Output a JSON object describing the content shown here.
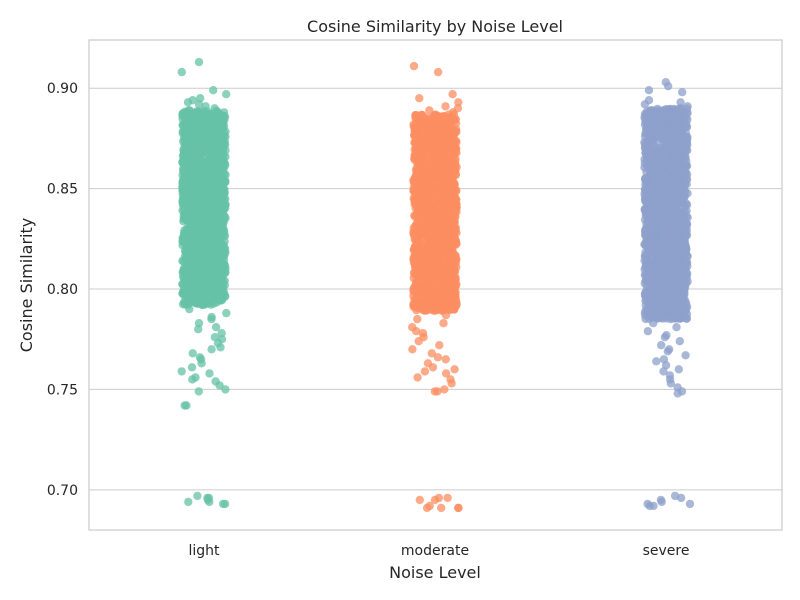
{
  "chart_data": {
    "type": "scatter",
    "subtype": "strip",
    "title": "Cosine Similarity by Noise Level",
    "xlabel": "Noise Level",
    "ylabel": "Cosine Similarity",
    "categories": [
      "light",
      "moderate",
      "severe"
    ],
    "ylim": [
      0.68,
      0.924
    ],
    "yticks": [
      0.7,
      0.75,
      0.8,
      0.85,
      0.9
    ],
    "ytick_labels": [
      "0.70",
      "0.75",
      "0.80",
      "0.85",
      "0.90"
    ],
    "grid": true,
    "legend": "none",
    "marker_alpha": 0.75,
    "series": [
      {
        "category": "light",
        "color": "#66c2a5",
        "dense_range": [
          0.792,
          0.889
        ],
        "points": [
          0.913,
          0.908,
          0.899,
          0.897,
          0.895,
          0.894,
          0.893,
          0.892,
          0.891,
          0.89,
          0.79,
          0.788,
          0.786,
          0.785,
          0.783,
          0.781,
          0.78,
          0.778,
          0.776,
          0.775,
          0.773,
          0.771,
          0.77,
          0.768,
          0.766,
          0.765,
          0.763,
          0.761,
          0.759,
          0.758,
          0.756,
          0.755,
          0.754,
          0.752,
          0.75,
          0.749,
          0.742,
          0.742,
          0.697,
          0.696,
          0.696,
          0.695,
          0.694,
          0.694,
          0.693,
          0.693
        ]
      },
      {
        "category": "moderate",
        "color": "#fc8d62",
        "dense_range": [
          0.789,
          0.887
        ],
        "points": [
          0.911,
          0.908,
          0.897,
          0.895,
          0.893,
          0.891,
          0.89,
          0.889,
          0.888,
          0.787,
          0.785,
          0.783,
          0.781,
          0.779,
          0.778,
          0.776,
          0.774,
          0.772,
          0.77,
          0.768,
          0.766,
          0.765,
          0.763,
          0.761,
          0.76,
          0.759,
          0.758,
          0.756,
          0.755,
          0.753,
          0.75,
          0.749,
          0.749,
          0.696,
          0.696,
          0.695,
          0.695,
          0.692,
          0.691,
          0.691,
          0.691,
          0.691
        ]
      },
      {
        "category": "severe",
        "color": "#8da0cb",
        "dense_range": [
          0.785,
          0.89
        ],
        "points": [
          0.903,
          0.901,
          0.899,
          0.898,
          0.894,
          0.893,
          0.892,
          0.891,
          0.783,
          0.781,
          0.779,
          0.777,
          0.776,
          0.774,
          0.772,
          0.77,
          0.769,
          0.767,
          0.765,
          0.764,
          0.762,
          0.76,
          0.759,
          0.757,
          0.755,
          0.753,
          0.751,
          0.749,
          0.748,
          0.697,
          0.696,
          0.695,
          0.694,
          0.693,
          0.693,
          0.692,
          0.692
        ]
      }
    ]
  }
}
